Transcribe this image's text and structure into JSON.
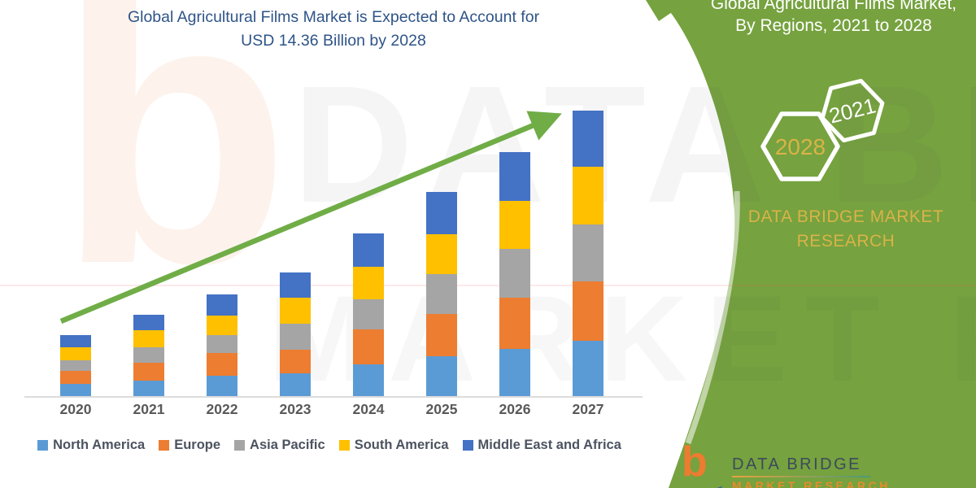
{
  "title": {
    "line1": "Global Agricultural Films Market is Expected to Account for",
    "line2": "USD 14.36 Billion by 2028"
  },
  "chart_data": {
    "type": "bar",
    "stacked": true,
    "title": "Global Agricultural Films Market is Expected to Account for USD 14.36 Billion by 2028",
    "categories": [
      "2020",
      "2021",
      "2022",
      "2023",
      "2024",
      "2025",
      "2026",
      "2027"
    ],
    "series": [
      {
        "name": "North America",
        "color": "#5B9BD5",
        "values": [
          15,
          19,
          25,
          28,
          39,
          49,
          58,
          68
        ]
      },
      {
        "name": "Europe",
        "color": "#ED7D31",
        "values": [
          16,
          22,
          28,
          29,
          43,
          52,
          63,
          73
        ]
      },
      {
        "name": "Asia Pacific",
        "color": "#A5A5A5",
        "values": [
          13,
          19,
          22,
          32,
          37,
          49,
          60,
          70
        ]
      },
      {
        "name": "South America",
        "color": "#FFC000",
        "values": [
          16,
          21,
          24,
          32,
          40,
          49,
          59,
          71
        ]
      },
      {
        "name": "Middle East and Africa",
        "color": "#4472C4",
        "values": [
          15,
          19,
          26,
          31,
          41,
          52,
          60,
          69
        ]
      }
    ],
    "value_axis_visible": false,
    "units": "relative size (value axis not shown)",
    "xlabel": "",
    "ylabel": "",
    "legend_position": "bottom",
    "grid": false,
    "annotations": {
      "trend_arrow": {
        "color": "#70AD47",
        "direction": "up-right"
      }
    }
  },
  "side_panel": {
    "panel_color": "#76A23F",
    "gold": "#D9B348",
    "heading_line1": "Global Agricultural Films Market,",
    "heading_line2": "By Regions, 2021 to 2028",
    "hex_large_label": "2028",
    "hex_small_label": "2021",
    "brand_line1": "DATA BRIDGE MARKET",
    "brand_line2": "RESEARCH"
  },
  "logo": {
    "b_glyph": "b",
    "name_text": "DATA BRIDGE",
    "sub_text": "MARKET RESEARCH"
  },
  "watermark": {
    "b_glyph": "b",
    "row1": "DATA BRIDGE",
    "row2": "MARKET RESEARCH"
  }
}
